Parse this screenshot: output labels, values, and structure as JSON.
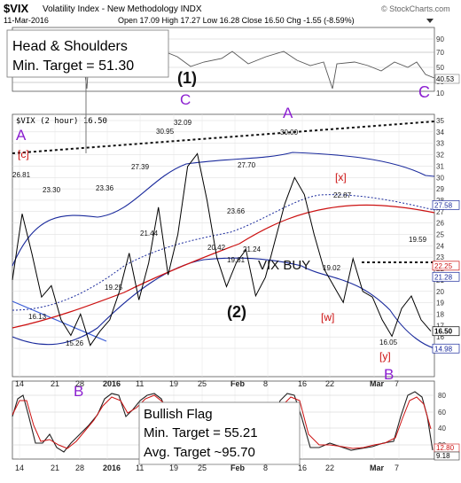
{
  "header": {
    "symbol": "$VIX",
    "name": "Volatility Index - New Methodology INDX",
    "date": "11-Mar-2016",
    "quote": "Open 17.09  High 17.27  Low 16.28  Close 16.50  Chg -1.55 (-8.59%)",
    "watermark": "© StockCharts.com"
  },
  "rsi_panel": {
    "ticks": [
      "90",
      "70",
      "50",
      "30",
      "10"
    ],
    "last_value": "40.53",
    "wave_label_1": "(1)",
    "wave_label_c": "C"
  },
  "price_panel": {
    "legend": "$VIX (2 hour) 16.50",
    "right_ticks": [
      "35",
      "34",
      "33",
      "32",
      "31",
      "30",
      "29",
      "28",
      "27",
      "26",
      "25",
      "24",
      "23",
      "22",
      "21",
      "20",
      "19",
      "18",
      "17",
      "16",
      "15"
    ],
    "right_badges": [
      {
        "text": "27.58",
        "color": "#1a2a9c"
      },
      {
        "text": "22.25",
        "color": "#cc1111"
      },
      {
        "text": "21.28",
        "color": "#1a2a9c"
      },
      {
        "text": "16.50",
        "color": "#000000"
      },
      {
        "text": "14.98",
        "color": "#1a2a9c"
      }
    ],
    "price_labels": [
      "26.81",
      "23.30",
      "16.13",
      "15.26",
      "23.36",
      "19.25",
      "27.39",
      "21.44",
      "30.95",
      "32.09",
      "20.42",
      "23.66",
      "19.61",
      "21.24",
      "27.70",
      "30.00",
      "22.87",
      "19.02",
      "16.05",
      "19.59"
    ],
    "wave_labels": {
      "a_left": "A",
      "c_left": "[c]",
      "c_top": "C",
      "a_top": "A",
      "x_bracket": "[x]",
      "w_bracket": "[w]",
      "y_bracket": "[y]",
      "two": "(2)",
      "b_main": "B"
    },
    "vix_buy": "VIX BUY"
  },
  "annotations": {
    "hs_title": "Head & Shoulders",
    "hs_target": "Min. Target = 51.30",
    "flag_title": "Bullish Flag",
    "flag_min": "Min. Target = 55.21",
    "flag_avg": "Avg. Target ~95.70"
  },
  "lower_panel": {
    "ticks": [
      "80",
      "60",
      "40",
      "20"
    ],
    "badges": [
      "12.80",
      "9.18"
    ],
    "b_label": "B"
  },
  "x_axis": {
    "labels": [
      "14",
      "21",
      "28",
      "2016",
      "11",
      "19",
      "25",
      "Feb",
      "8",
      "16",
      "22",
      "Mar",
      "7"
    ]
  },
  "chart_data": {
    "type": "line",
    "title": "$VIX Volatility Index - New Methodology INDX",
    "series": [
      {
        "name": "$VIX (2 hour)",
        "values": [
          21.0,
          26.81,
          23.3,
          19.5,
          20.5,
          17.5,
          16.13,
          18.0,
          15.26,
          16.5,
          17.5,
          20.0,
          23.36,
          19.25,
          22.5,
          27.39,
          21.44,
          25.0,
          30.95,
          32.09,
          28.0,
          23.0,
          20.42,
          22.5,
          23.66,
          19.61,
          21.24,
          24.5,
          27.7,
          30.0,
          28.5,
          25.0,
          22.0,
          20.5,
          19.02,
          22.87,
          20.0,
          19.5,
          17.5,
          16.05,
          18.5,
          19.59,
          17.5,
          16.5
        ]
      }
    ],
    "close": 16.5,
    "ylim": [
      14,
      36
    ]
  }
}
